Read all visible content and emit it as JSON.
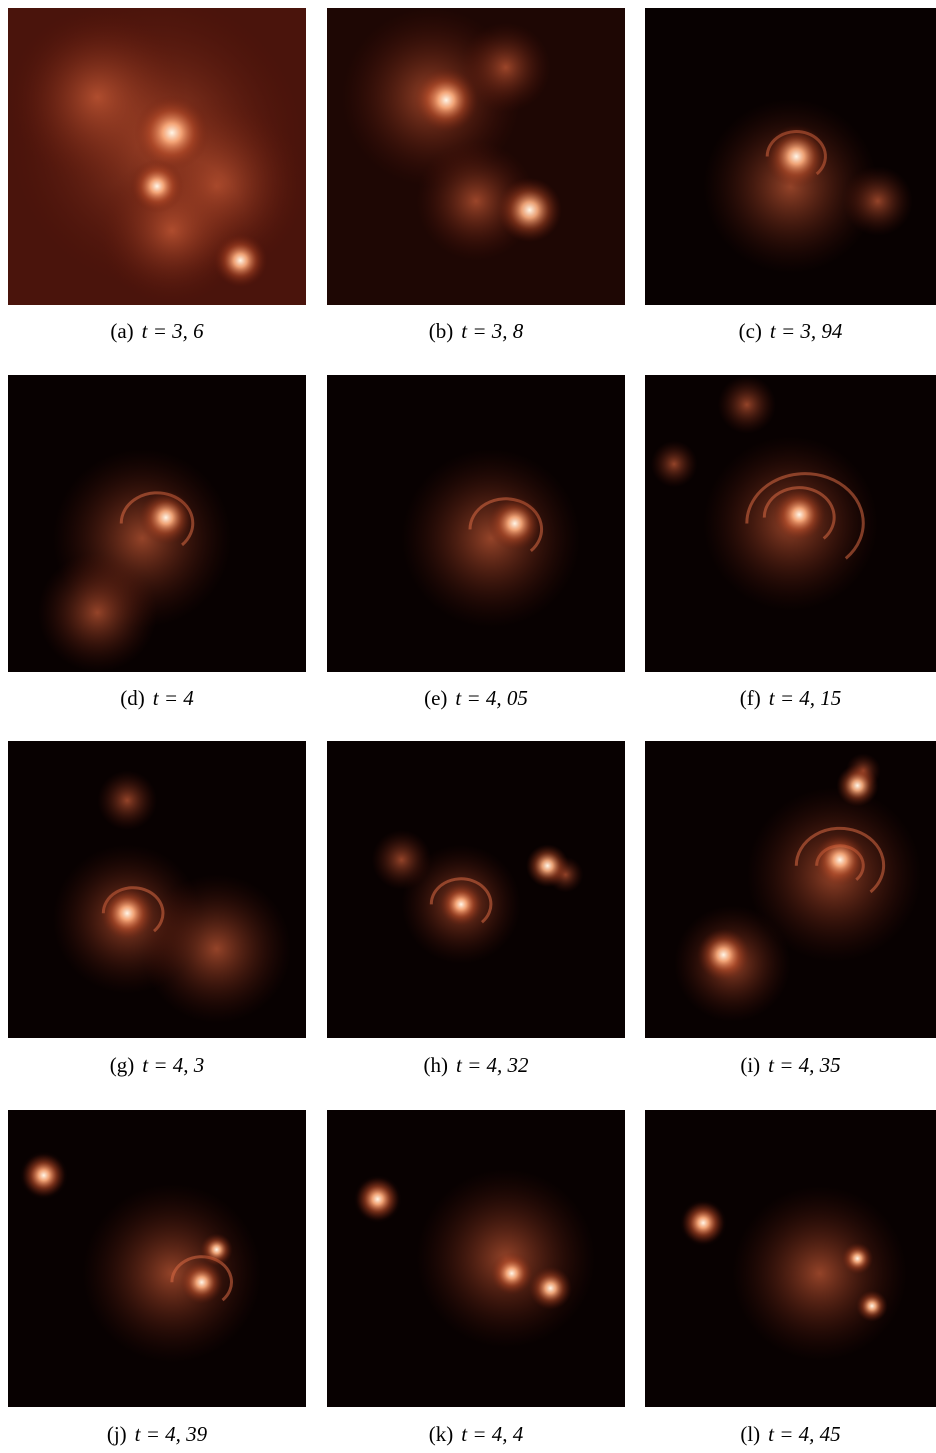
{
  "panels": [
    {
      "label": "(a)",
      "caption": "t = 3, 6"
    },
    {
      "label": "(b)",
      "caption": "t = 3, 8"
    },
    {
      "label": "(c)",
      "caption": "t = 3, 94"
    },
    {
      "label": "(d)",
      "caption": "t = 4"
    },
    {
      "label": "(e)",
      "caption": "t = 4, 05"
    },
    {
      "label": "(f)",
      "caption": "t = 4, 15"
    },
    {
      "label": "(g)",
      "caption": "t = 4, 3"
    },
    {
      "label": "(h)",
      "caption": "t = 4, 32"
    },
    {
      "label": "(i)",
      "caption": "t = 4, 35"
    },
    {
      "label": "(j)",
      "caption": "t = 4, 39"
    },
    {
      "label": "(k)",
      "caption": "t = 4, 4"
    },
    {
      "label": "(l)",
      "caption": "t = 4, 45"
    }
  ]
}
